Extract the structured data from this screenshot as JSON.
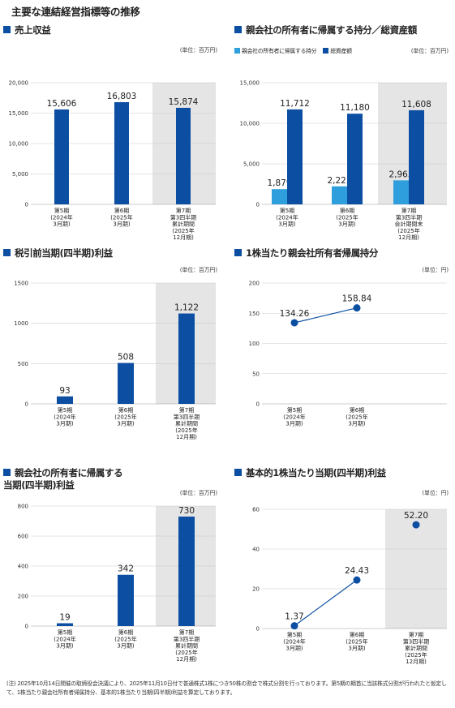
{
  "page_title": "主要な連結経営指標等の推移",
  "colors": {
    "accent": "#0b4ea2",
    "light_bar": "#2e9fdc",
    "shade": "#e5e5e5",
    "grid": "#cccccc"
  },
  "footnote": "(注) 2025年10月14日開催の取締役会決議により、2025年11月10日付で普通株式1株につき50株の割合で株式分割を行っております。第5期の期首に当該株式分割が行われたと仮定して、1株当たり親会社所有者帰属持分、基本的1株当たり当期(四半期)利益を算定しております。",
  "panels": [
    {
      "title": "売上収益",
      "unit": "(単位：百万円)"
    },
    {
      "title": "親会社の所有者に帰属する持分／総資産額",
      "unit": "(単位：百万円)",
      "legend": [
        "親会社の所有者に帰属する持分",
        "総資産額"
      ]
    },
    {
      "title": "税引前当期(四半期)利益",
      "unit": "(単位：百万円)"
    },
    {
      "title": "1株当たり親会社所有者帰属持分",
      "unit": "(単位：円)"
    },
    {
      "title": "親会社の所有者に帰属する\n当期(四半期)利益",
      "unit": "(単位：百万円)"
    },
    {
      "title": "基本的1株当たり当期(四半期)利益",
      "unit": "(単位：円)"
    }
  ],
  "chart_data": [
    {
      "type": "bar",
      "title": "売上収益",
      "categories": [
        "第5期\n(2024年\n3月期)",
        "第6期\n(2025年\n3月期)",
        "第7期\n第3四半期\n累計期間\n(2025年\n12月期)"
      ],
      "series": [
        {
          "values": [
            15606,
            16803,
            15874
          ]
        }
      ],
      "labels": [
        "15,606",
        "16,803",
        "15,874"
      ],
      "yticks": [
        "0",
        "5,000",
        "10,000",
        "15,000",
        "20,000"
      ],
      "ylim": [
        0,
        20000
      ],
      "highlight_last": true
    },
    {
      "type": "bar",
      "title": "親会社の所有者に帰属する持分／総資産額",
      "categories": [
        "第5期\n(2024年\n3月期)",
        "第6期\n(2025年\n3月期)",
        "第7期\n第3四半期\n会計期間末\n(2025年\n12月期)"
      ],
      "series": [
        {
          "name": "親会社の所有者に帰属する持分",
          "values": [
            1879,
            2223,
            2963
          ],
          "labels": [
            "1,879",
            "2,223",
            "2,963"
          ]
        },
        {
          "name": "総資産額",
          "values": [
            11712,
            11180,
            11608
          ],
          "labels": [
            "11,712",
            "11,180",
            "11,608"
          ]
        }
      ],
      "yticks": [
        "0",
        "5,000",
        "10,000",
        "15,000"
      ],
      "ylim": [
        0,
        15000
      ],
      "highlight_last": true
    },
    {
      "type": "bar",
      "title": "税引前当期(四半期)利益",
      "categories": [
        "第5期\n(2024年\n3月期)",
        "第6期\n(2025年\n3月期)",
        "第7期\n第3四半期\n累計期間\n(2025年\n12月期)"
      ],
      "series": [
        {
          "values": [
            93,
            508,
            1122
          ]
        }
      ],
      "labels": [
        "93",
        "508",
        "1,122"
      ],
      "yticks": [
        "0",
        "500",
        "1000",
        "1500"
      ],
      "ylim": [
        0,
        1500
      ],
      "highlight_last": true
    },
    {
      "type": "line",
      "title": "1株当たり親会社所有者帰属持分",
      "categories": [
        "第5期\n(2024年\n3月期)",
        "第6期\n(2025年\n3月期)"
      ],
      "series": [
        {
          "values": [
            134.26,
            158.84
          ]
        }
      ],
      "labels": [
        "134.26",
        "158.84"
      ],
      "yticks": [
        "0",
        "50",
        "100",
        "150",
        "200"
      ],
      "ylim": [
        0,
        200
      ],
      "highlight_last": false
    },
    {
      "type": "bar",
      "title": "親会社の所有者に帰属する当期(四半期)利益",
      "categories": [
        "第5期\n(2024年\n3月期)",
        "第6期\n(2025年\n3月期)",
        "第7期\n第3四半期\n累計期間\n(2025年\n12月期)"
      ],
      "series": [
        {
          "values": [
            19,
            342,
            730
          ]
        }
      ],
      "labels": [
        "19",
        "342",
        "730"
      ],
      "yticks": [
        "0",
        "200",
        "400",
        "600",
        "800"
      ],
      "ylim": [
        0,
        800
      ],
      "highlight_last": true
    },
    {
      "type": "line",
      "title": "基本的1株当たり当期(四半期)利益",
      "categories": [
        "第5期\n(2024年\n3月期)",
        "第6期\n(2025年\n3月期)",
        "第7期\n第3四半期\n累計期間\n(2025年\n12月期)"
      ],
      "series": [
        {
          "values": [
            1.37,
            24.43,
            52.2
          ]
        }
      ],
      "labels": [
        "1.37",
        "24.43",
        "52.20"
      ],
      "yticks": [
        "0",
        "20",
        "40",
        "60"
      ],
      "ylim": [
        0,
        60
      ],
      "highlight_last": true,
      "connect_count": 2
    }
  ]
}
